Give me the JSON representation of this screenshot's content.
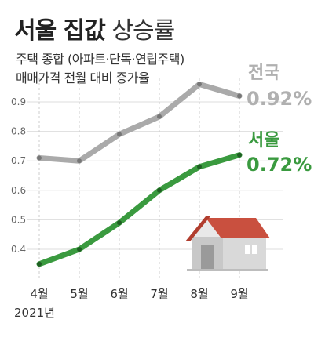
{
  "header": {
    "title_bold": "서울 집값",
    "title_light": "상승률",
    "subtitle_line1": "주택 종합 (아파트·단독·연립주택)",
    "subtitle_line2": "매매가격 전월 대비 증가율"
  },
  "colors": {
    "national": "#aaaaaa",
    "seoul": "#3a9a3f",
    "seoul_text": "#3a9a3f",
    "national_text": "#b0b0b0"
  },
  "chart_data": {
    "type": "line",
    "categories": [
      "4월",
      "5월",
      "6월",
      "7월",
      "8월",
      "9월"
    ],
    "year_label": "2021년",
    "ylim": [
      0.3,
      0.98
    ],
    "yticks": [
      "0.4",
      "0.5",
      "0.6",
      "0.7",
      "0.8",
      "0.9"
    ],
    "series": [
      {
        "name": "전국",
        "end_label": "0.92%",
        "values": [
          0.71,
          0.7,
          0.79,
          0.85,
          0.96,
          0.92
        ]
      },
      {
        "name": "서울",
        "end_label": "0.72%",
        "values": [
          0.35,
          0.4,
          0.49,
          0.6,
          0.68,
          0.72
        ]
      }
    ],
    "grid": true
  }
}
